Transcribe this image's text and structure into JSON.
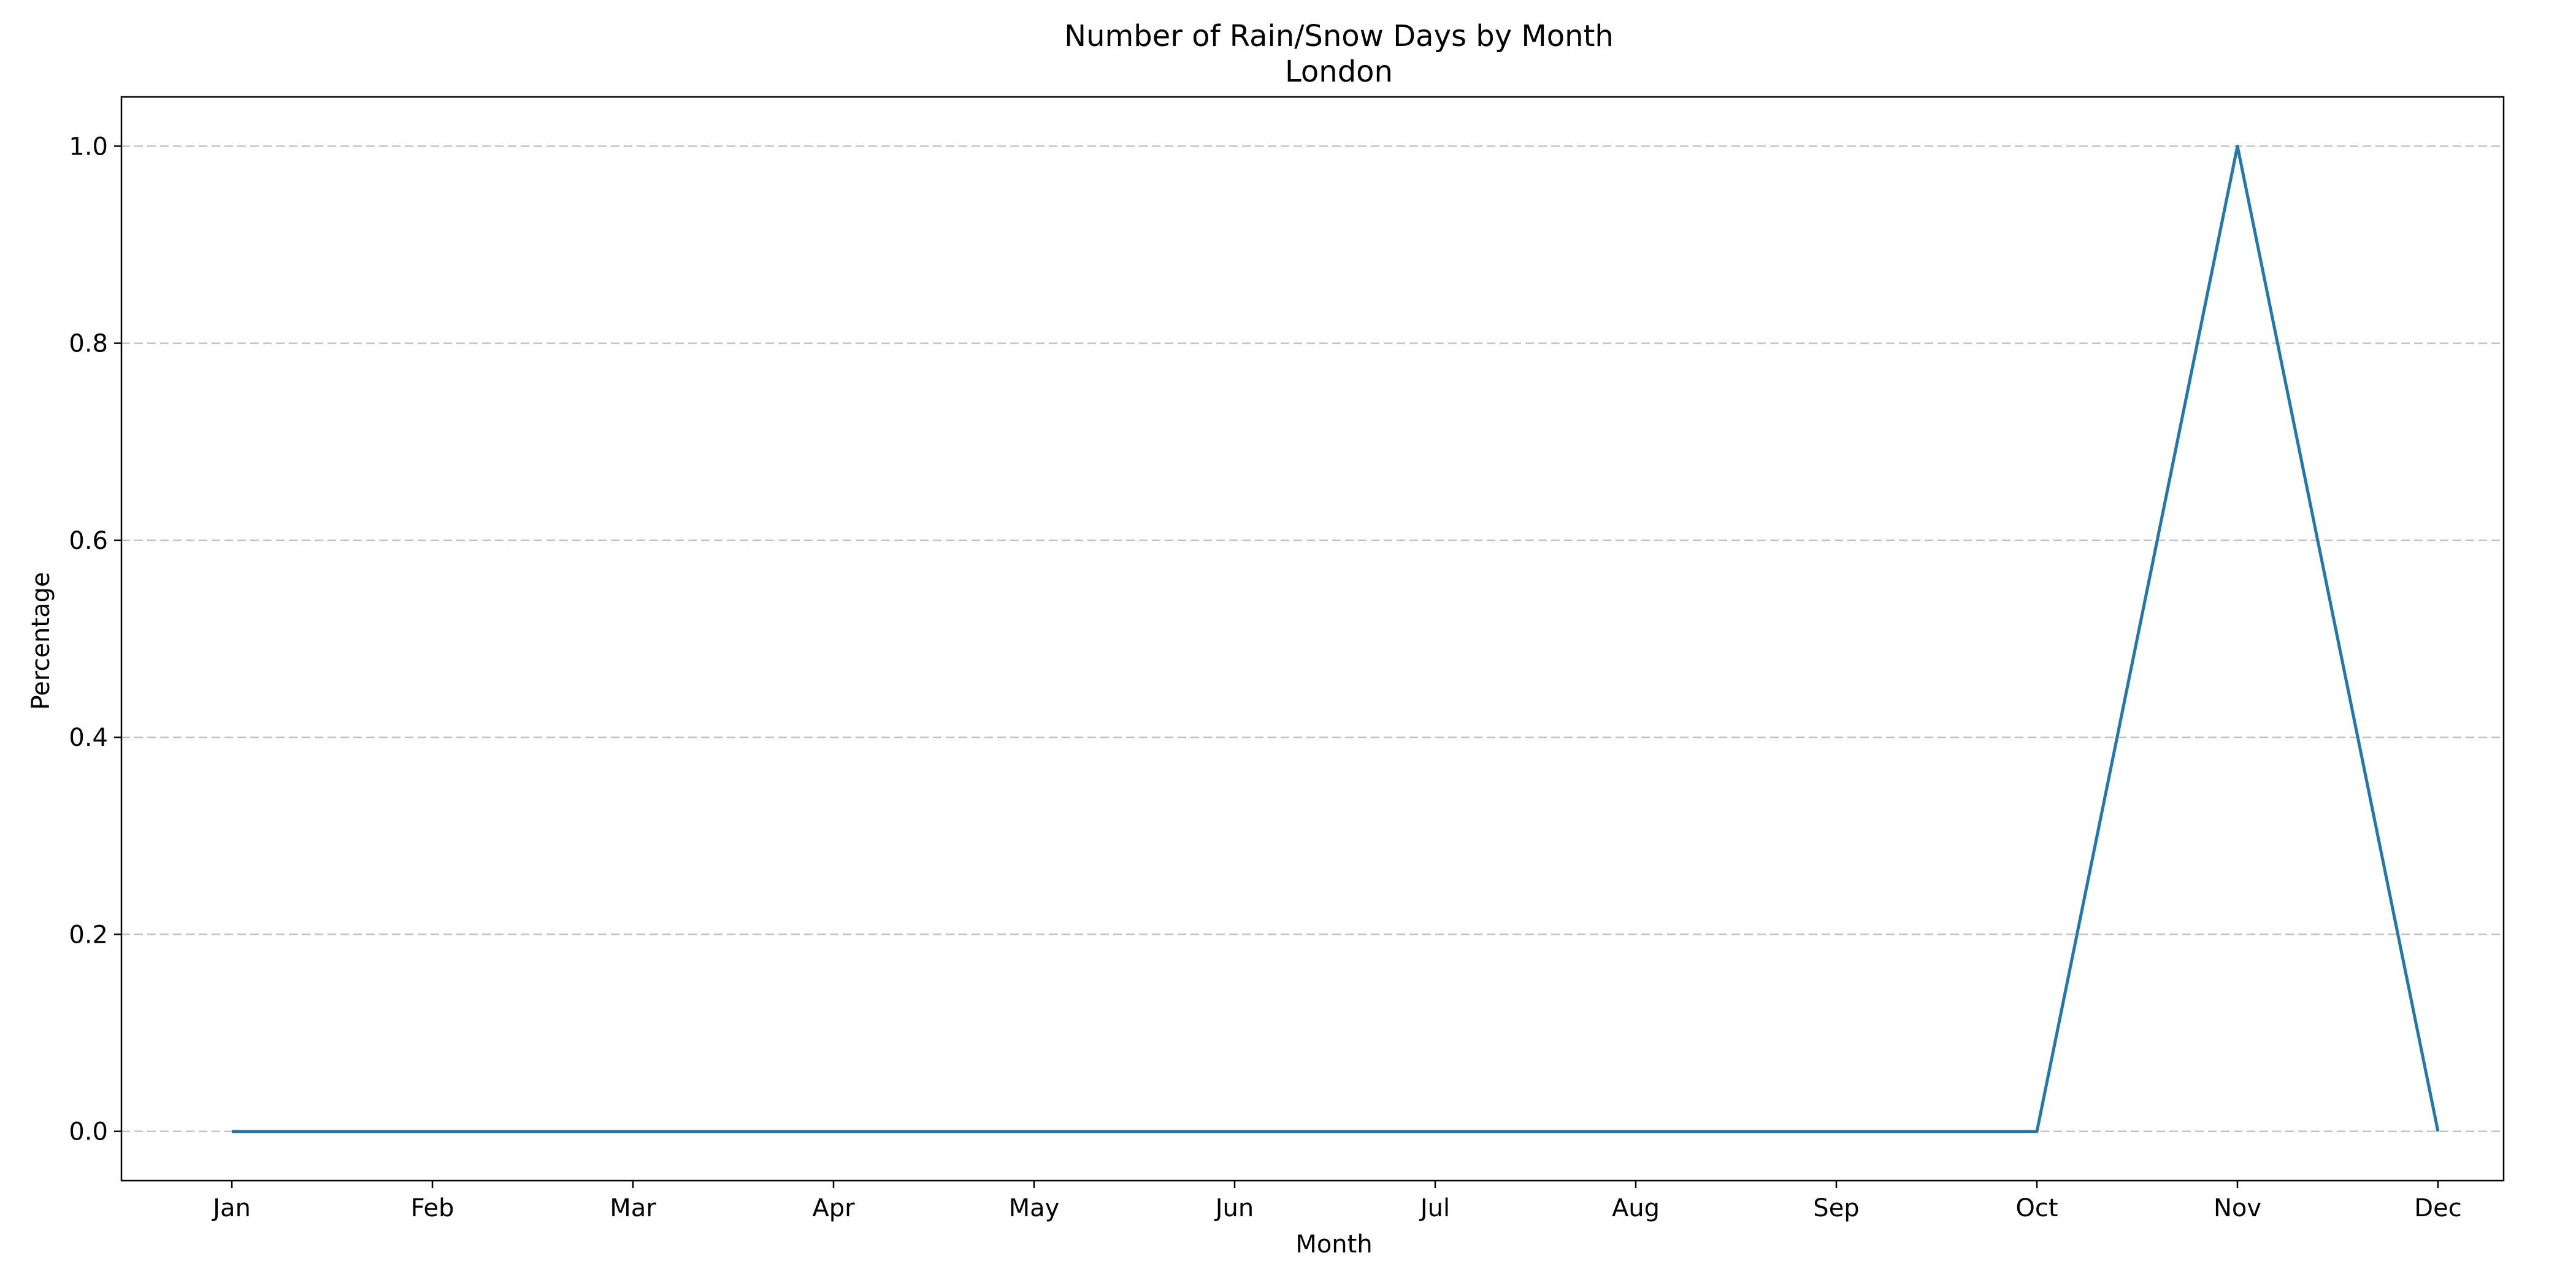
{
  "chart_data": {
    "type": "line",
    "title": "Number of Rain/Snow Days by Month",
    "subtitle": "London",
    "xlabel": "Month",
    "ylabel": "Percentage",
    "categories": [
      "Jan",
      "Feb",
      "Mar",
      "Apr",
      "May",
      "Jun",
      "Jul",
      "Aug",
      "Sep",
      "Oct",
      "Nov",
      "Dec"
    ],
    "series": [
      {
        "values": [
          0,
          0,
          0,
          0,
          0,
          0,
          0,
          0,
          0,
          0,
          1,
          0
        ],
        "color": "#1f77b4"
      }
    ],
    "ylim": [
      -0.05,
      1.05
    ],
    "yticks": [
      0.0,
      0.2,
      0.4,
      0.6,
      0.8,
      1.0
    ],
    "ytick_labels": [
      "0.0",
      "0.2",
      "0.4",
      "0.6",
      "0.8",
      "1.0"
    ],
    "grid": "y-dashed",
    "legend": "none"
  }
}
